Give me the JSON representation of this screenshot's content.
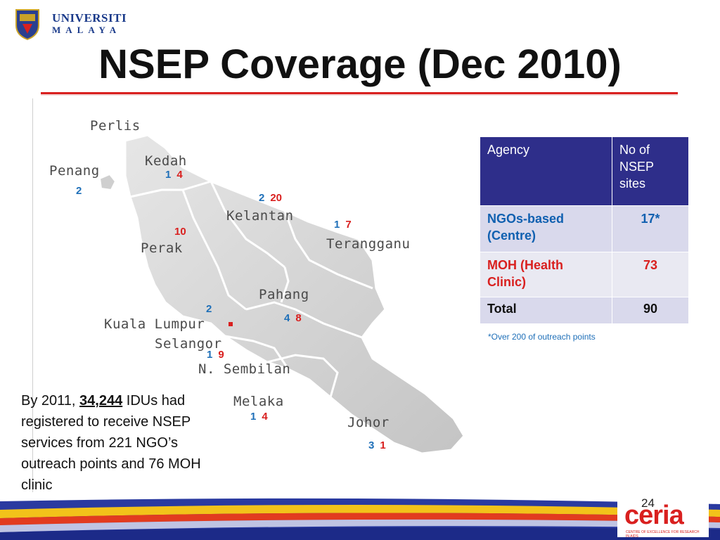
{
  "header": {
    "logo_line1": "UNIVERSITI",
    "logo_line2": "MALAYA",
    "title": "NSEP Coverage (Dec 2010)"
  },
  "map": {
    "states": {
      "perlis": "Perlis",
      "kedah": "Kedah",
      "penang": "Penang",
      "kelantan": "Kelantan",
      "terengganu": "Terangganu",
      "perak": "Perak",
      "pahang": "Pahang",
      "kuala_lumpur": "Kuala Lumpur",
      "selangor": "Selangor",
      "n_sembilan": "N. Sembilan",
      "melaka": "Melaka",
      "johor": "Johor"
    },
    "counts": {
      "kedah": {
        "ngo": "1",
        "moh": "4"
      },
      "penang": {
        "ngo": "2",
        "moh": ""
      },
      "kelantan": {
        "ngo": "2",
        "moh": "20"
      },
      "terengganu": {
        "ngo": "1",
        "moh": "7"
      },
      "perak": {
        "ngo": "",
        "moh": "10"
      },
      "kuala_lumpur": {
        "ngo": "2",
        "moh": ""
      },
      "pahang": {
        "ngo": "4",
        "moh": "8"
      },
      "selangor": {
        "ngo": "1",
        "moh": "9"
      },
      "melaka": {
        "ngo": "1",
        "moh": "4"
      },
      "johor": {
        "ngo": "3",
        "moh": "1"
      }
    },
    "colors": {
      "ngo": "#1e6fb8",
      "moh": "#d9201f"
    }
  },
  "table": {
    "headers": [
      "Agency",
      "No of NSEP sites"
    ],
    "rows": [
      {
        "agency": "NGOs-based (Centre)",
        "sites": "17*"
      },
      {
        "agency": "MOH (Health Clinic)",
        "sites": "73"
      },
      {
        "agency": "Total",
        "sites": "90"
      }
    ],
    "footnote": "*Over 200 of outreach points"
  },
  "caption": {
    "prefix": "By 2011, ",
    "highlight": "34,244",
    "suffix": " IDUs had registered to receive NSEP services from 221 NGO’s outreach points and 76 MOH clinic"
  },
  "footer": {
    "page_number": "24",
    "logo_text": "ceria",
    "logo_subtext": "CENTRE OF EXCELLENCE FOR RESEARCH IN AIDS"
  }
}
